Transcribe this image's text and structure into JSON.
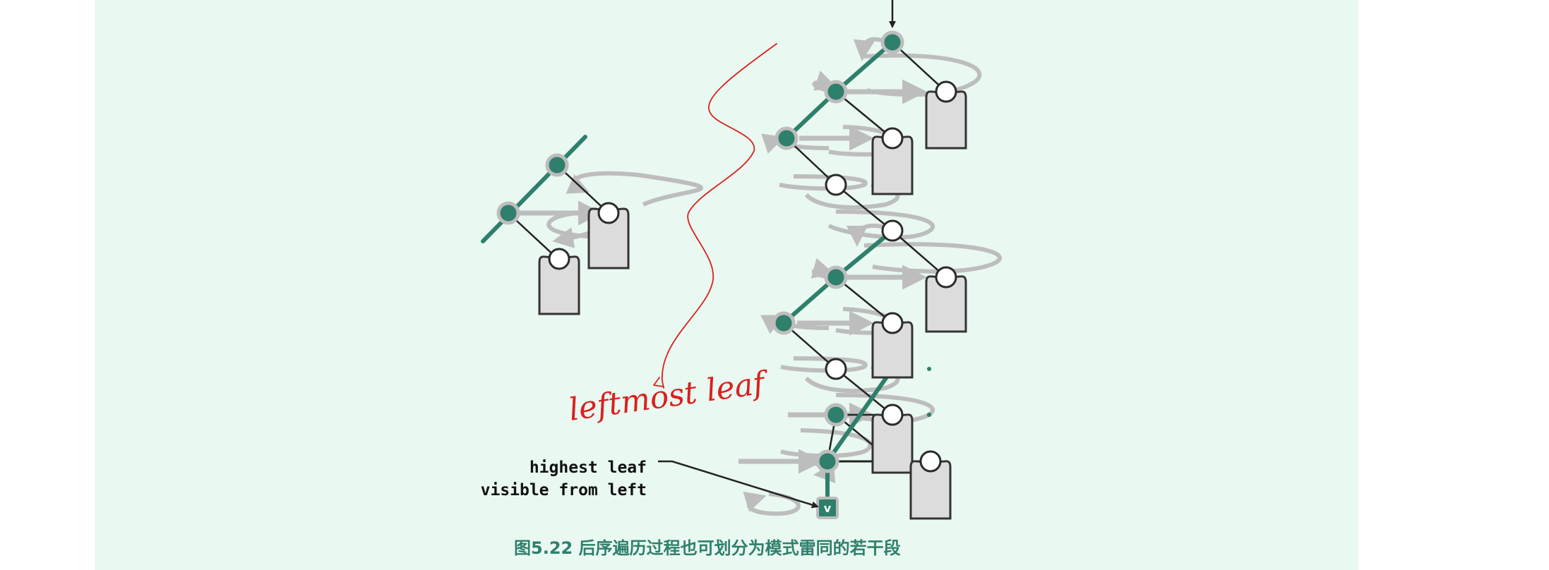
{
  "diagram": {
    "label_highest_leaf_line1": "highest leaf",
    "label_highest_leaf_line2": "visible from left",
    "node_v_label": "v",
    "caption": "图5.22  后序遍历过程也可划分为模式雷同的若干段",
    "handwritten_note": "leftmost leaf"
  },
  "colors": {
    "panel_background": "#e9f8f0",
    "accent_green": "#2e7f6c",
    "traversal_gray": "#bdbdbd",
    "subtree_fill": "#dcdcdc",
    "annotation_red": "#d92020"
  }
}
